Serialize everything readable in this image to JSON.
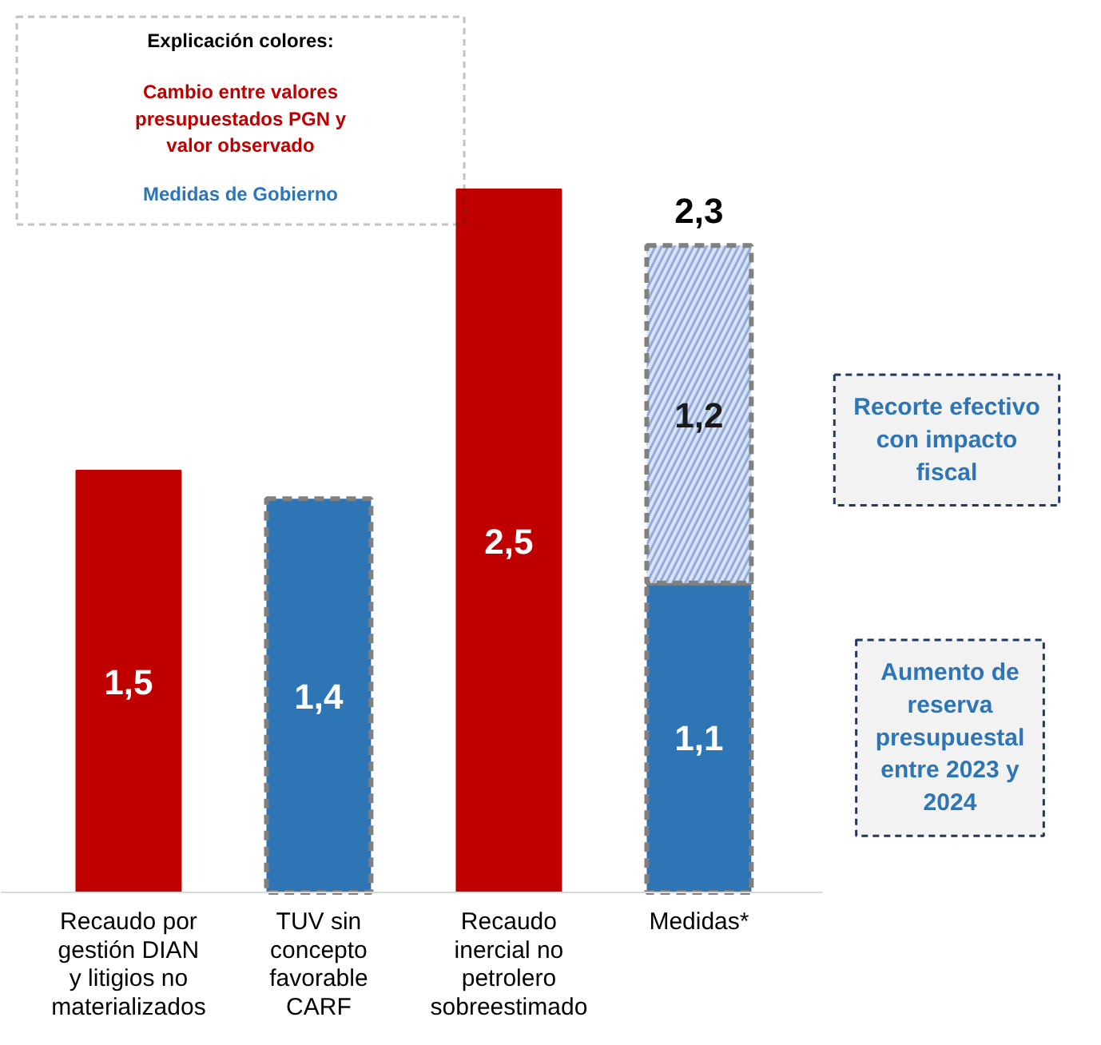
{
  "chart_data": {
    "type": "bar",
    "stacked": true,
    "categories": [
      "Recaudo por gestión DIAN y litigios no materializados",
      "TUV sin concepto favorable CARF",
      "Recaudo inercial no petrolero sobreestimado",
      "Medidas*"
    ],
    "series": [
      {
        "color": "#c00000",
        "values": [
          1.5,
          null,
          2.5,
          null
        ],
        "value_labels": [
          "1,5",
          null,
          "2,5",
          null
        ]
      },
      {
        "color": "#2e75b6",
        "values": [
          null,
          1.4,
          null,
          1.1
        ],
        "value_labels": [
          null,
          "1,4",
          null,
          "1,1"
        ]
      },
      {
        "color": "#dae3f3",
        "values": [
          null,
          null,
          null,
          1.2
        ],
        "value_labels": [
          null,
          null,
          null,
          "1,2"
        ]
      }
    ],
    "totals": [
      null,
      null,
      null,
      "2,3"
    ],
    "annotations": [
      "Explicación colores:",
      "Cambio entre valores presupuestados PGN y valor observado",
      "Medidas de Gobierno",
      "Recorte efectivo con impacto fiscal",
      "Aumento de reserva presupuestal entre 2023 y 2024"
    ],
    "grid": false
  }
}
